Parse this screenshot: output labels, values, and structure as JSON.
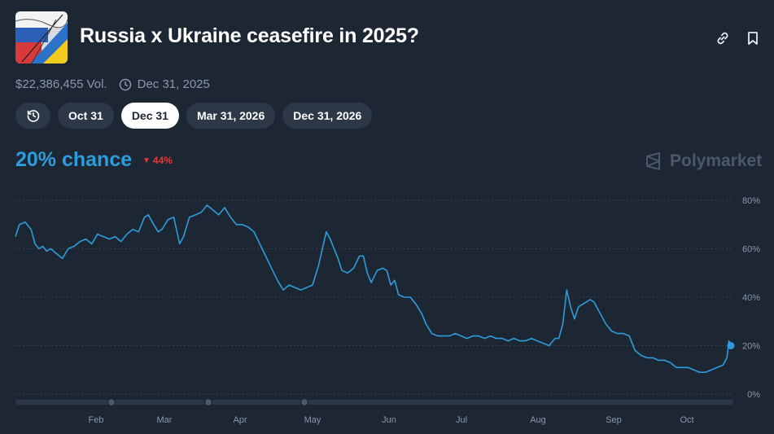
{
  "header": {
    "title": "Russia x Ukraine ceasefire in 2025?",
    "flag_icon": "russia-ukraine-flag-image",
    "link_icon": "link-icon",
    "bookmark_icon": "bookmark-icon"
  },
  "meta": {
    "volume": "$22,386,455 Vol.",
    "end_date": "Dec 31, 2025"
  },
  "date_tabs": {
    "history_icon": "history-icon",
    "items": [
      "Oct 31",
      "Dec 31",
      "Mar 31, 2026",
      "Dec 31, 2026"
    ],
    "selected": "Dec 31"
  },
  "odds": {
    "chance_label": "20% chance",
    "change_label": "44%",
    "change_direction": "down"
  },
  "brand": {
    "name": "Polymarket"
  },
  "colors": {
    "background": "#1d2733",
    "accent": "#2d9cdb",
    "negative": "#e23939",
    "pill": "#2c3847"
  },
  "chart_data": {
    "type": "line",
    "title": "",
    "xlabel": "",
    "ylabel": "",
    "ylim": [
      0,
      80
    ],
    "y_ticks": [
      "80%",
      "60%",
      "40%",
      "20%",
      "0%"
    ],
    "x_tick_labels": [
      "Feb",
      "Mar",
      "Apr",
      "May",
      "Jun",
      "Jul",
      "Aug",
      "Sep",
      "Oct"
    ],
    "grid": "dotted horizontal",
    "series": [
      {
        "values": [
          [
            0,
            65
          ],
          [
            2,
            70
          ],
          [
            5,
            71
          ],
          [
            8,
            68
          ],
          [
            10,
            62
          ],
          [
            12,
            60
          ],
          [
            14,
            61
          ],
          [
            16,
            59
          ],
          [
            18,
            60
          ],
          [
            21,
            58
          ],
          [
            24,
            56
          ],
          [
            27,
            60
          ],
          [
            30,
            61
          ],
          [
            33,
            63
          ],
          [
            36,
            64
          ],
          [
            39,
            62
          ],
          [
            42,
            66
          ],
          [
            45,
            65
          ],
          [
            48,
            64
          ],
          [
            51,
            65
          ],
          [
            54,
            63
          ],
          [
            57,
            66
          ],
          [
            60,
            68
          ],
          [
            63,
            67
          ],
          [
            66,
            73
          ],
          [
            68,
            74
          ],
          [
            70,
            71
          ],
          [
            73,
            67
          ],
          [
            75,
            68
          ],
          [
            78,
            72
          ],
          [
            81,
            73
          ],
          [
            84,
            62
          ],
          [
            86,
            65
          ],
          [
            89,
            73
          ],
          [
            92,
            74
          ],
          [
            95,
            75
          ],
          [
            98,
            78
          ],
          [
            101,
            76
          ],
          [
            104,
            74
          ],
          [
            107,
            77
          ],
          [
            110,
            73
          ],
          [
            113,
            70
          ],
          [
            116,
            70
          ],
          [
            119,
            69
          ],
          [
            122,
            67
          ],
          [
            125,
            62
          ],
          [
            128,
            57
          ],
          [
            131,
            52
          ],
          [
            134,
            47
          ],
          [
            137,
            43
          ],
          [
            140,
            45
          ],
          [
            143,
            44
          ],
          [
            146,
            43
          ],
          [
            149,
            44
          ],
          [
            152,
            45
          ],
          [
            155,
            53
          ],
          [
            157,
            60
          ],
          [
            159,
            67
          ],
          [
            161,
            64
          ],
          [
            163,
            60
          ],
          [
            165,
            56
          ],
          [
            167,
            51
          ],
          [
            170,
            50
          ],
          [
            173,
            52
          ],
          [
            176,
            57
          ],
          [
            178,
            57
          ],
          [
            180,
            50
          ],
          [
            182,
            46
          ],
          [
            185,
            51
          ],
          [
            188,
            52
          ],
          [
            190,
            51
          ],
          [
            192,
            45
          ],
          [
            194,
            47
          ],
          [
            196,
            41
          ],
          [
            199,
            40
          ],
          [
            202,
            40
          ],
          [
            205,
            37
          ],
          [
            208,
            33
          ],
          [
            210,
            29
          ],
          [
            213,
            25
          ],
          [
            216,
            24
          ],
          [
            219,
            24
          ],
          [
            222,
            24
          ],
          [
            225,
            25
          ],
          [
            228,
            24
          ],
          [
            231,
            23
          ],
          [
            234,
            24
          ],
          [
            237,
            24
          ],
          [
            240,
            23
          ],
          [
            243,
            24
          ],
          [
            246,
            23
          ],
          [
            249,
            23
          ],
          [
            252,
            22
          ],
          [
            255,
            23
          ],
          [
            258,
            22
          ],
          [
            261,
            22
          ],
          [
            264,
            23
          ],
          [
            267,
            22
          ],
          [
            270,
            21
          ],
          [
            273,
            20
          ],
          [
            276,
            23
          ],
          [
            278,
            23
          ],
          [
            280,
            29
          ],
          [
            282,
            43
          ],
          [
            284,
            36
          ],
          [
            286,
            31
          ],
          [
            288,
            36
          ],
          [
            290,
            37
          ],
          [
            292,
            38
          ],
          [
            294,
            39
          ],
          [
            296,
            38
          ],
          [
            298,
            35
          ],
          [
            300,
            32
          ],
          [
            302,
            29
          ],
          [
            305,
            26
          ],
          [
            308,
            25
          ],
          [
            311,
            25
          ],
          [
            314,
            24
          ],
          [
            317,
            18
          ],
          [
            320,
            16
          ],
          [
            323,
            15
          ],
          [
            326,
            15
          ],
          [
            329,
            14
          ],
          [
            332,
            14
          ],
          [
            335,
            13
          ],
          [
            338,
            11
          ],
          [
            341,
            11
          ],
          [
            344,
            11
          ],
          [
            347,
            10
          ],
          [
            350,
            9
          ],
          [
            353,
            9
          ],
          [
            356,
            10
          ],
          [
            359,
            11
          ],
          [
            362,
            12
          ],
          [
            364,
            15
          ],
          [
            365,
            22
          ],
          [
            366,
            20
          ]
        ]
      }
    ]
  }
}
